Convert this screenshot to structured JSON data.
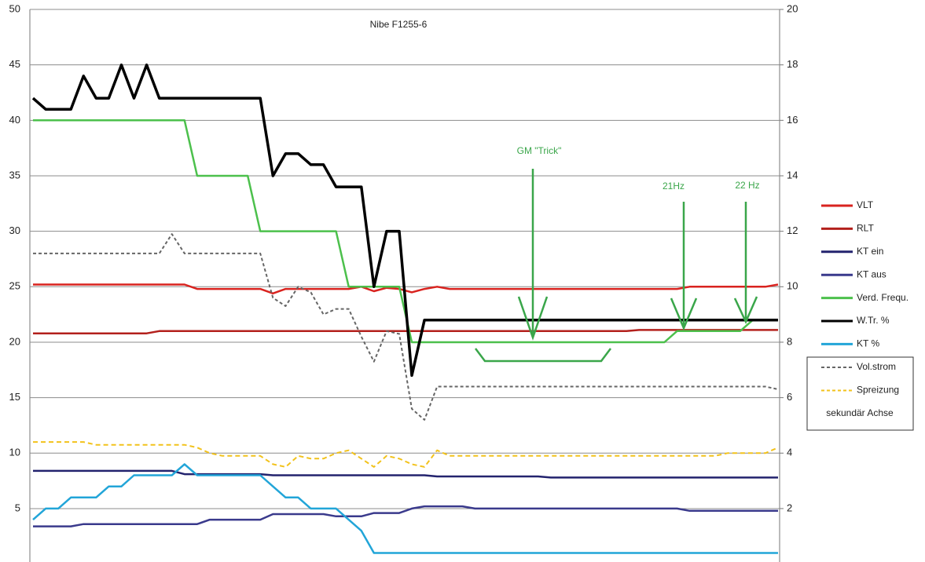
{
  "chart_data": {
    "type": "line",
    "title": "Nibe F1255-6",
    "categories": [
      null,
      null,
      null,
      null,
      null,
      null,
      null,
      null,
      null,
      null,
      null,
      null,
      null,
      null,
      null,
      null,
      null,
      null,
      null,
      null,
      null,
      null,
      null,
      null,
      null,
      null,
      null,
      null,
      null,
      null,
      null,
      null,
      null,
      null,
      null,
      null,
      null,
      null,
      null,
      null,
      null,
      null,
      null,
      null,
      null,
      null,
      null,
      null,
      null,
      null,
      null,
      null,
      null,
      null,
      null,
      null,
      null,
      null,
      null,
      null
    ],
    "ylim": [
      0,
      50
    ],
    "yticks": [
      5,
      10,
      15,
      20,
      25,
      30,
      35,
      40,
      45,
      50
    ],
    "y2lim": [
      0,
      20
    ],
    "y2ticks": [
      2,
      4,
      6,
      8,
      10,
      12,
      14,
      16,
      18,
      20
    ],
    "grid": true,
    "legend": "right",
    "legend_note": "sekundär Achse",
    "annotations": [
      "GM \"Trick\"",
      "21Hz",
      "22 Hz"
    ],
    "series": [
      {
        "name": "VLT",
        "color": "#d9231f",
        "values": [
          25.2,
          25.2,
          25.2,
          25.2,
          25.2,
          25.2,
          25.2,
          25.2,
          25.2,
          25.2,
          25.2,
          25.2,
          25.2,
          24.8,
          24.8,
          24.8,
          24.8,
          24.8,
          24.8,
          24.4,
          24.8,
          24.8,
          24.8,
          24.8,
          24.8,
          24.8,
          25.0,
          24.6,
          24.9,
          24.8,
          24.5,
          24.8,
          25.0,
          24.8,
          24.8,
          24.8,
          24.8,
          24.8,
          24.8,
          24.8,
          24.8,
          24.8,
          24.8,
          24.8,
          24.8,
          24.8,
          24.8,
          24.8,
          24.8,
          24.8,
          24.8,
          24.8,
          25.0,
          25.0,
          25.0,
          25.0,
          25.0,
          25.0,
          25.0,
          25.2
        ]
      },
      {
        "name": "RLT",
        "color": "#b3201c",
        "values": [
          20.8,
          20.8,
          20.8,
          20.8,
          20.8,
          20.8,
          20.8,
          20.8,
          20.8,
          20.8,
          21.0,
          21.0,
          21.0,
          21.0,
          21.0,
          21.0,
          21.0,
          21.0,
          21.0,
          21.0,
          21.0,
          21.0,
          21.0,
          21.0,
          21.0,
          21.0,
          21.0,
          21.0,
          21.0,
          21.0,
          21.0,
          21.0,
          21.0,
          21.0,
          21.0,
          21.0,
          21.0,
          21.0,
          21.0,
          21.0,
          21.0,
          21.0,
          21.0,
          21.0,
          21.0,
          21.0,
          21.0,
          21.0,
          21.1,
          21.1,
          21.1,
          21.1,
          21.1,
          21.1,
          21.1,
          21.1,
          21.1,
          21.1,
          21.1,
          21.1
        ]
      },
      {
        "name": "KT ein",
        "color": "#23236e",
        "values": [
          8.4,
          8.4,
          8.4,
          8.4,
          8.4,
          8.4,
          8.4,
          8.4,
          8.4,
          8.4,
          8.4,
          8.4,
          8.1,
          8.1,
          8.1,
          8.1,
          8.1,
          8.1,
          8.1,
          8.0,
          8.0,
          8.0,
          8.0,
          8.0,
          8.0,
          8.0,
          8.0,
          8.0,
          8.0,
          8.0,
          8.0,
          8.0,
          7.9,
          7.9,
          7.9,
          7.9,
          7.9,
          7.9,
          7.9,
          7.9,
          7.9,
          7.8,
          7.8,
          7.8,
          7.8,
          7.8,
          7.8,
          7.8,
          7.8,
          7.8,
          7.8,
          7.8,
          7.8,
          7.8,
          7.8,
          7.8,
          7.8,
          7.8,
          7.8,
          7.8
        ]
      },
      {
        "name": "KT aus",
        "color": "#3a3a8c",
        "values": [
          3.4,
          3.4,
          3.4,
          3.4,
          3.6,
          3.6,
          3.6,
          3.6,
          3.6,
          3.6,
          3.6,
          3.6,
          3.6,
          3.6,
          4.0,
          4.0,
          4.0,
          4.0,
          4.0,
          4.5,
          4.5,
          4.5,
          4.5,
          4.5,
          4.3,
          4.3,
          4.3,
          4.6,
          4.6,
          4.6,
          5.0,
          5.2,
          5.2,
          5.2,
          5.2,
          5.0,
          5.0,
          5.0,
          5.0,
          5.0,
          5.0,
          5.0,
          5.0,
          5.0,
          5.0,
          5.0,
          5.0,
          5.0,
          5.0,
          5.0,
          5.0,
          5.0,
          4.8,
          4.8,
          4.8,
          4.8,
          4.8,
          4.8,
          4.8,
          4.8
        ]
      },
      {
        "name": "Verd. Frequ.",
        "color": "#4cc04c",
        "values": [
          40,
          40,
          40,
          40,
          40,
          40,
          40,
          40,
          40,
          40,
          40,
          40,
          40,
          35,
          35,
          35,
          35,
          35,
          30,
          30,
          30,
          30,
          30,
          30,
          30,
          25,
          25,
          25,
          25,
          25,
          20,
          20,
          20,
          20,
          20,
          20,
          20,
          20,
          20,
          20,
          20,
          20,
          20,
          20,
          20,
          20,
          20,
          20,
          20,
          20,
          20,
          21,
          21,
          21,
          21,
          21,
          21,
          22,
          22,
          22
        ]
      },
      {
        "name": "W.Tr. %",
        "color": "#000000",
        "values": [
          42,
          41,
          41,
          41,
          44,
          42,
          42,
          45,
          42,
          45,
          42,
          42,
          42,
          42,
          42,
          42,
          42,
          42,
          42,
          35,
          37,
          37,
          36,
          36,
          34,
          34,
          34,
          25,
          30,
          30,
          17,
          22,
          22,
          22,
          22,
          22,
          22,
          22,
          22,
          22,
          22,
          22,
          22,
          22,
          22,
          22,
          22,
          22,
          22,
          22,
          22,
          22,
          22,
          22,
          22,
          22,
          22,
          22,
          22,
          22
        ]
      },
      {
        "name": "KT %",
        "color": "#22a5d8",
        "values": [
          4,
          5,
          5,
          6,
          6,
          6,
          7,
          7,
          8,
          8,
          8,
          8,
          9,
          8,
          8,
          8,
          8,
          8,
          8,
          7,
          6,
          6,
          5,
          5,
          5,
          4,
          3,
          1,
          1,
          1,
          1,
          1,
          1,
          1,
          1,
          1,
          1,
          1,
          1,
          1,
          1,
          1,
          1,
          1,
          1,
          1,
          1,
          1,
          1,
          1,
          1,
          1,
          1,
          1,
          1,
          1,
          1,
          1,
          1,
          1
        ]
      },
      {
        "name": "Vol.strom",
        "color": "#666666",
        "axis": "y2",
        "dashed": true,
        "values": [
          11.2,
          11.2,
          11.2,
          11.2,
          11.2,
          11.2,
          11.2,
          11.2,
          11.2,
          11.2,
          11.2,
          11.9,
          11.2,
          11.2,
          11.2,
          11.2,
          11.2,
          11.2,
          11.2,
          9.6,
          9.3,
          10.0,
          9.8,
          9.0,
          9.2,
          9.2,
          8.2,
          7.3,
          8.4,
          8.3,
          5.6,
          5.2,
          6.4,
          6.4,
          6.4,
          6.4,
          6.4,
          6.4,
          6.4,
          6.4,
          6.4,
          6.4,
          6.4,
          6.4,
          6.4,
          6.4,
          6.4,
          6.4,
          6.4,
          6.4,
          6.4,
          6.4,
          6.4,
          6.4,
          6.4,
          6.4,
          6.4,
          6.4,
          6.4,
          6.3
        ]
      },
      {
        "name": "Spreizung",
        "color": "#f2c21b",
        "axis": "y2",
        "dashed": true,
        "values": [
          4.4,
          4.4,
          4.4,
          4.4,
          4.4,
          4.3,
          4.3,
          4.3,
          4.3,
          4.3,
          4.3,
          4.3,
          4.3,
          4.2,
          4.0,
          3.9,
          3.9,
          3.9,
          3.9,
          3.6,
          3.5,
          3.9,
          3.8,
          3.8,
          4.0,
          4.1,
          3.8,
          3.5,
          3.9,
          3.8,
          3.6,
          3.5,
          4.1,
          3.9,
          3.9,
          3.9,
          3.9,
          3.9,
          3.9,
          3.9,
          3.9,
          3.9,
          3.9,
          3.9,
          3.9,
          3.9,
          3.9,
          3.9,
          3.9,
          3.9,
          3.9,
          3.9,
          3.9,
          3.9,
          3.9,
          4.0,
          4.0,
          4.0,
          4.0,
          4.2
        ]
      }
    ]
  }
}
